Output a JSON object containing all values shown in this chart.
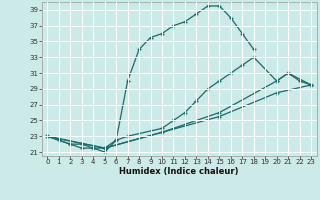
{
  "xlabel": "Humidex (Indice chaleur)",
  "bg_color": "#cceae7",
  "grid_color": "#ffffff",
  "line_color": "#1a6b6b",
  "xlim": [
    -0.5,
    23.5
  ],
  "ylim": [
    20.5,
    40.0
  ],
  "yticks": [
    21,
    23,
    25,
    27,
    29,
    31,
    33,
    35,
    37,
    39
  ],
  "xticks": [
    0,
    1,
    2,
    3,
    4,
    5,
    6,
    7,
    8,
    9,
    10,
    11,
    12,
    13,
    14,
    15,
    16,
    17,
    18,
    19,
    20,
    21,
    22,
    23
  ],
  "lines": [
    {
      "x": [
        0,
        1,
        2,
        3,
        4,
        5,
        6,
        7,
        8,
        9,
        10,
        11,
        12,
        13,
        14,
        15,
        16,
        17,
        18
      ],
      "y": [
        23,
        22.5,
        22,
        22,
        21.5,
        21,
        22.5,
        30,
        34,
        35.5,
        36,
        37,
        37.5,
        38.5,
        39.5,
        39.5,
        38,
        36,
        34
      ]
    },
    {
      "x": [
        0,
        2,
        3,
        4,
        5,
        6,
        7,
        10,
        11,
        12,
        13,
        14,
        15,
        16,
        17,
        18,
        20,
        21,
        22,
        23
      ],
      "y": [
        23,
        22,
        21.5,
        21.5,
        21.5,
        22.5,
        23,
        24,
        25,
        26,
        27.5,
        29,
        30,
        31,
        32,
        33,
        30,
        31,
        30,
        29.5
      ]
    },
    {
      "x": [
        0,
        5,
        10,
        15,
        20,
        21,
        23
      ],
      "y": [
        23,
        21.5,
        23.5,
        26,
        30,
        31,
        29.5
      ]
    },
    {
      "x": [
        0,
        5,
        10,
        15,
        20,
        23
      ],
      "y": [
        23,
        21.5,
        23.5,
        25.5,
        28.5,
        29.5
      ]
    }
  ]
}
